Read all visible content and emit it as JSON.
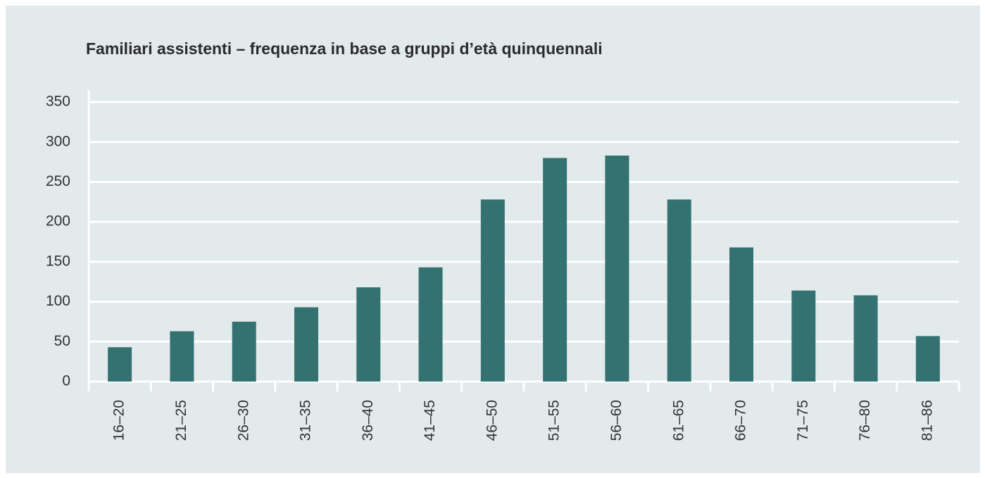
{
  "chart_data": {
    "type": "bar",
    "title": "Familiari assistenti – frequenza in base a gruppi d’età quinquennali",
    "categories": [
      "16–20",
      "21–25",
      "26–30",
      "31–35",
      "36–40",
      "41–45",
      "46–50",
      "51–55",
      "56–60",
      "61–65",
      "66–70",
      "71–75",
      "76–80",
      "81–86"
    ],
    "values": [
      43,
      63,
      75,
      93,
      118,
      143,
      228,
      280,
      283,
      228,
      168,
      114,
      108,
      57
    ],
    "color": "#347272",
    "ylim": [
      0,
      350
    ],
    "yticks": [
      0,
      50,
      100,
      150,
      200,
      250,
      300,
      350
    ],
    "grid": true
  }
}
